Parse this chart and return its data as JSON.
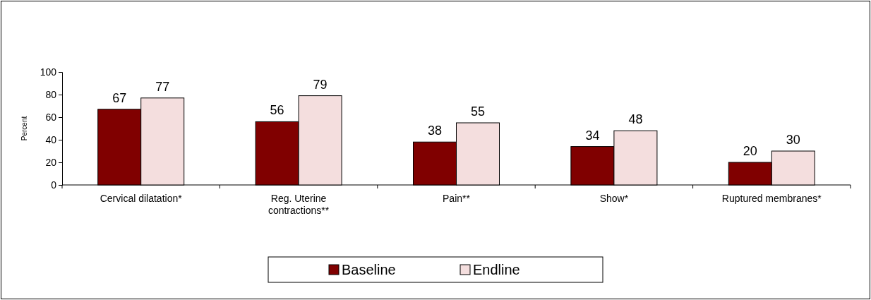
{
  "chart_data": {
    "type": "bar",
    "ylabel": "Percent",
    "categories": [
      "Cervical dilatation*",
      "Reg. Uterine contractions**",
      "Pain**",
      "Show*",
      "Ruptured membranes*"
    ],
    "series": [
      {
        "name": "Baseline",
        "color": "#800000",
        "values": [
          67,
          56,
          38,
          34,
          20
        ]
      },
      {
        "name": "Endline",
        "color": "#f4dede",
        "values": [
          77,
          79,
          55,
          48,
          30
        ]
      }
    ],
    "ylim": [
      0,
      100
    ],
    "yticks": [
      0,
      20,
      40,
      60,
      80,
      100
    ],
    "grid": false,
    "legend": "bottom",
    "data_labels": true
  }
}
